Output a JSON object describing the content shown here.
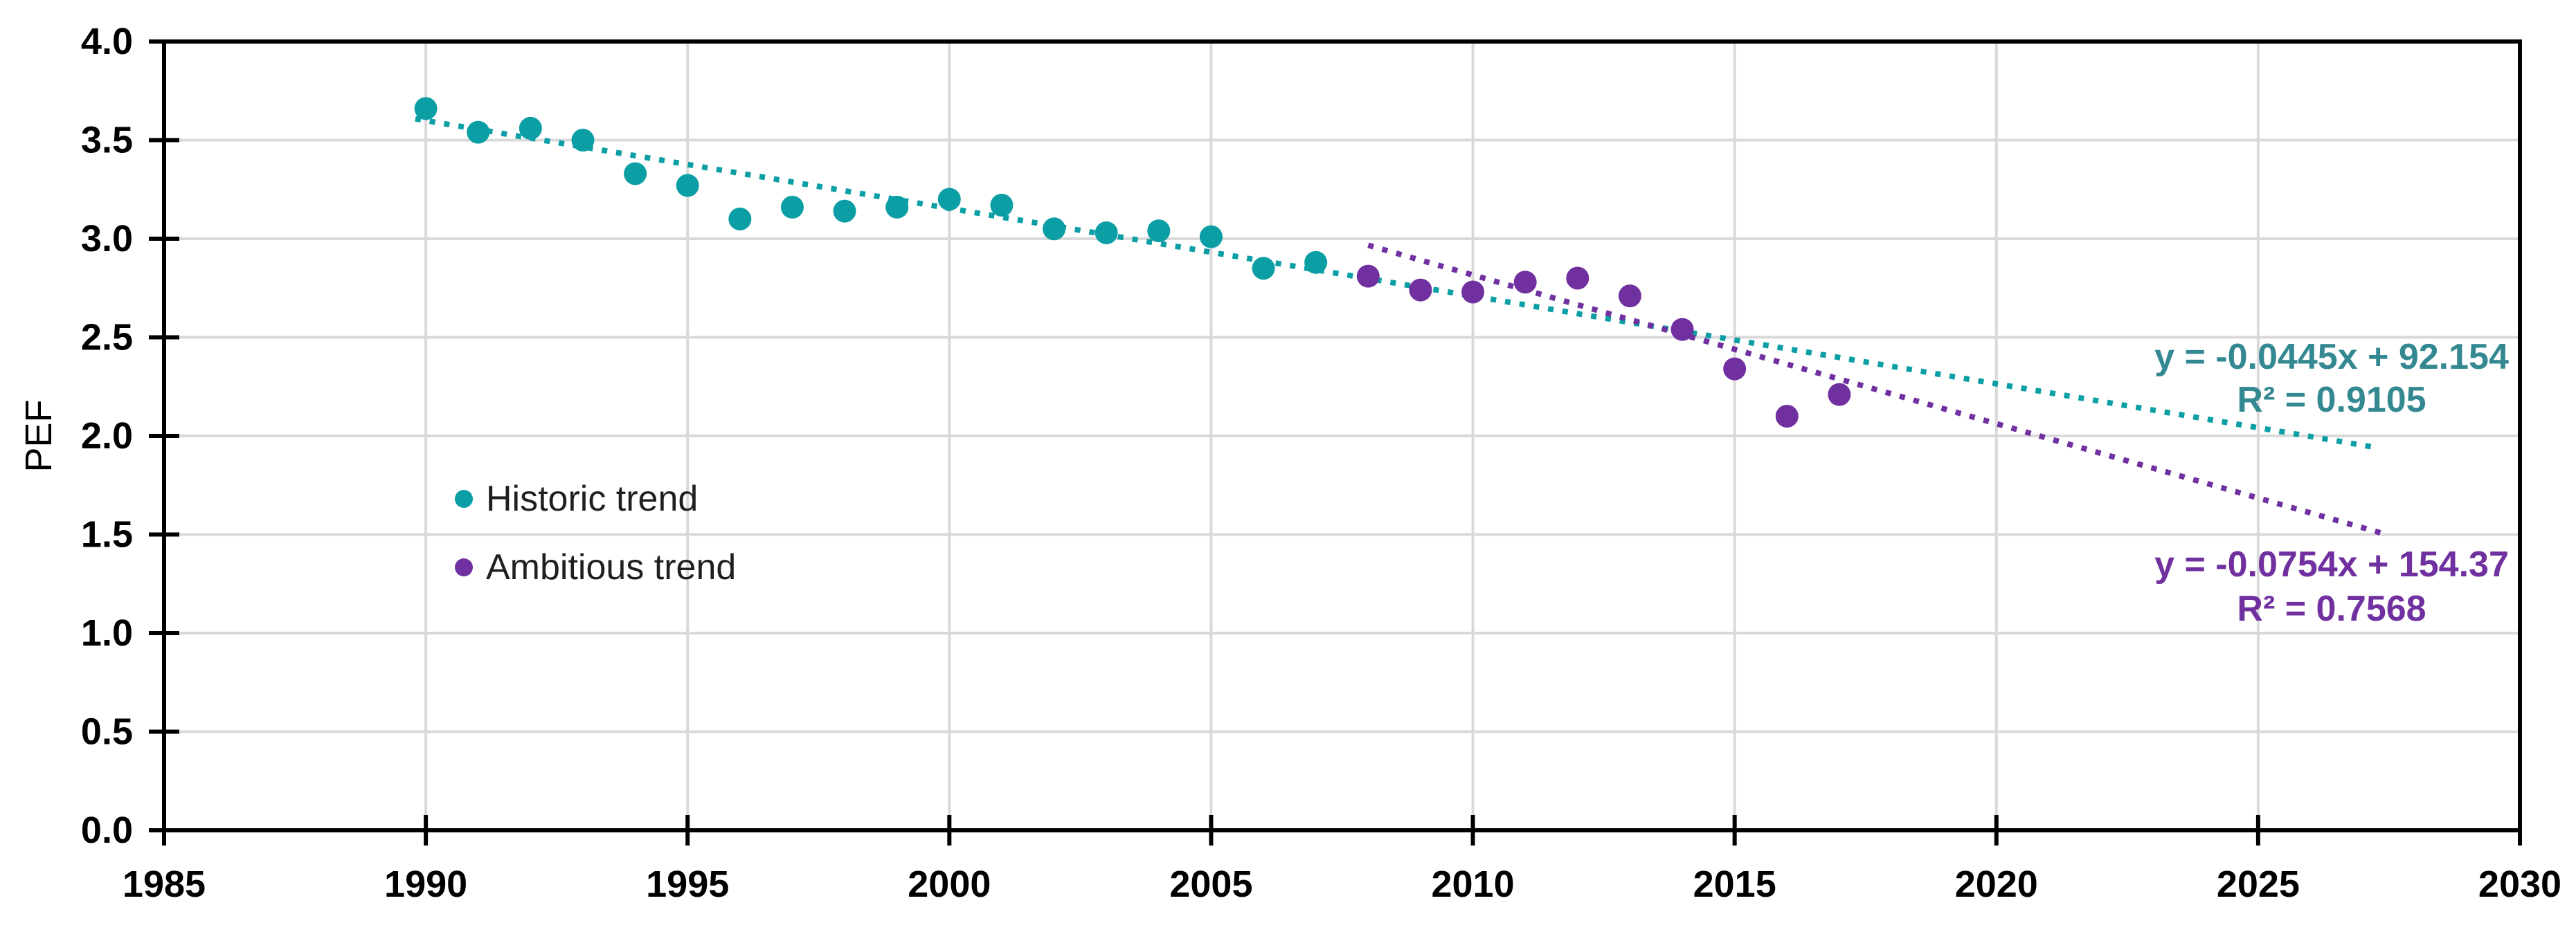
{
  "chart_data": {
    "type": "scatter",
    "title": "",
    "xlabel": "",
    "ylabel": "PEF",
    "xlim": [
      1985,
      2030
    ],
    "ylim": [
      0.0,
      4.0
    ],
    "grid": true,
    "legend_position": "inside-left",
    "x_ticks": [
      "1985",
      "1990",
      "1995",
      "2000",
      "2005",
      "2010",
      "2015",
      "2020",
      "2025",
      "2030"
    ],
    "y_ticks": [
      "0.0",
      "0.5",
      "1.0",
      "1.5",
      "2.0",
      "2.5",
      "3.0",
      "3.5",
      "4.0"
    ],
    "series": [
      {
        "name": "Historic trend",
        "color": "#0B9FA5",
        "equation_color": "#338891",
        "marker": "circle",
        "x": [
          1990,
          1991,
          1992,
          1993,
          1994,
          1995,
          1996,
          1997,
          1998,
          1999,
          2000,
          2001,
          2002,
          2003,
          2004,
          2005,
          2006,
          2007
        ],
        "values": [
          3.66,
          3.54,
          3.56,
          3.5,
          3.33,
          3.27,
          3.1,
          3.16,
          3.14,
          3.16,
          3.2,
          3.17,
          3.05,
          3.03,
          3.04,
          3.01,
          2.85,
          2.88
        ],
        "trendline": {
          "style": "dotted",
          "slope": -0.0445,
          "intercept": 92.154,
          "r_squared": 0.9105,
          "x_start": 1989.8,
          "x_end": 2027.3,
          "equation_label": "y = -0.0445x + 92.154",
          "r2_label": "R² = 0.9105"
        }
      },
      {
        "name": "Ambitious trend",
        "color": "#7030A0",
        "equation_color": "#7030A0",
        "marker": "circle",
        "x": [
          2008,
          2009,
          2010,
          2011,
          2012,
          2013,
          2014,
          2015,
          2016,
          2017
        ],
        "values": [
          2.81,
          2.74,
          2.73,
          2.78,
          2.8,
          2.71,
          2.54,
          2.34,
          2.1,
          2.21
        ],
        "trendline": {
          "style": "dotted",
          "slope": -0.0754,
          "intercept": 154.37,
          "r_squared": 0.7568,
          "x_start": 2008.0,
          "x_end": 2027.35,
          "equation_label": "y = -0.0754x + 154.37",
          "r2_label": "R² = 0.7568"
        }
      }
    ]
  }
}
